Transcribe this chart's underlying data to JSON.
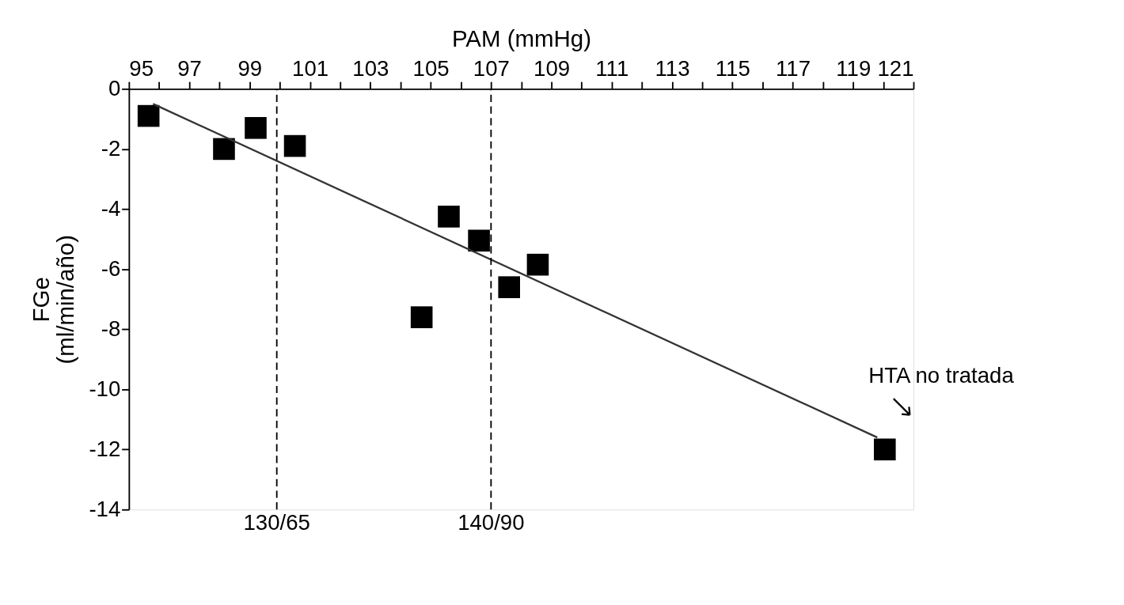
{
  "chart_data": {
    "type": "scatter",
    "xlabel": "PAM (mmHg)",
    "ylabel": "FGe\n(ml/min/año)",
    "x": [
      95.65,
      98.15,
      99.2,
      100.5,
      105.6,
      106.6,
      104.7,
      107.6,
      108.55,
      120.05
    ],
    "series": [
      {
        "color": "#000000",
        "marker": "square",
        "values": [
          -0.9,
          -2.0,
          -1.3,
          -1.9,
          -4.25,
          -5.05,
          -7.6,
          -6.6,
          -5.85,
          -12.0
        ]
      },
      {
        "type": "line",
        "color": "#333333",
        "line_style": "solid",
        "x": [
          95.8,
          119.8
        ],
        "values": [
          -0.5,
          -11.6
        ]
      }
    ],
    "xlim": [
      95,
      121
    ],
    "xticks": [
      95,
      {
        "value": 96,
        "label": null
      },
      97,
      {
        "value": 98,
        "label": null
      },
      99,
      {
        "value": 100,
        "label": null
      },
      101,
      {
        "value": 102,
        "label": null
      },
      103,
      {
        "value": 104,
        "label": null
      },
      105,
      {
        "value": 106,
        "label": null
      },
      107,
      {
        "value": 108,
        "label": null
      },
      109,
      {
        "value": 110,
        "label": null
      },
      111,
      {
        "value": 112,
        "label": null
      },
      113,
      {
        "value": 114,
        "label": null
      },
      115,
      {
        "value": 116,
        "label": null
      },
      117,
      {
        "value": 118,
        "label": null
      },
      119,
      {
        "value": 120,
        "label": null
      },
      121
    ],
    "ylim": [
      -14,
      0
    ],
    "yticks": [
      -14,
      -12,
      -10,
      -8,
      -6,
      -4,
      -2,
      0
    ],
    "ref_lines": [
      {
        "axis": "x",
        "value": 99.9,
        "line_style": "dashed"
      },
      {
        "axis": "x",
        "value": 107.0,
        "line_style": "dashed"
      }
    ],
    "annotations": [
      {
        "text": "130/65",
        "x": 99.9,
        "y": -14
      },
      {
        "text": "140/90",
        "x": 107.0,
        "y": -14
      },
      "HTA no tratada"
    ],
    "grid": false
  }
}
